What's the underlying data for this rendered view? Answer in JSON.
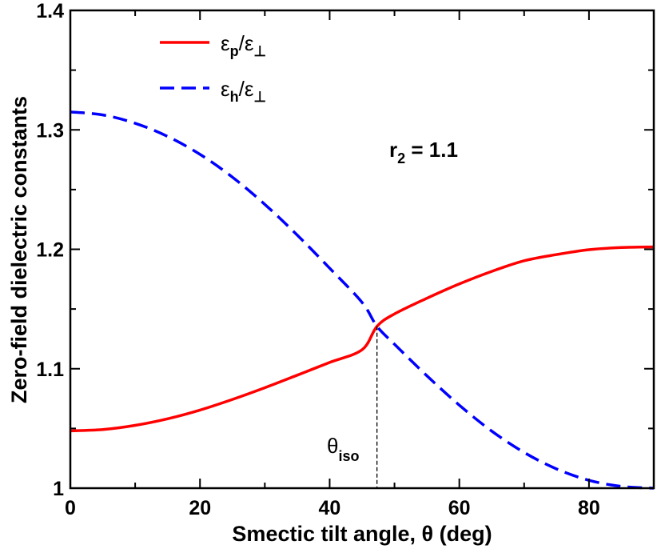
{
  "chart_data": {
    "type": "line",
    "title": "",
    "xlabel": "Smectic tilt angle, θ  (deg)",
    "ylabel": "Zero-field dielectric constants",
    "xlim": [
      0,
      90
    ],
    "ylim": [
      1.0,
      1.4
    ],
    "xticks": [
      "0",
      "20",
      "40",
      "60",
      "80"
    ],
    "yticks": [
      "1",
      "1.1",
      "1.2",
      "1.3",
      "1.4"
    ],
    "grid": false,
    "legend_position": "top-left",
    "series": [
      {
        "name": "εp/ε⊥",
        "base": "ε",
        "subscript": "p",
        "suffix": "/ε",
        "suffix_sub": "⊥",
        "color": "#ff0000",
        "style": "solid",
        "x": [
          0,
          5,
          10,
          15,
          20,
          25,
          30,
          35,
          40,
          45,
          47.3,
          50,
          55,
          60,
          65,
          70,
          75,
          80,
          85,
          90
        ],
        "y": [
          1.048,
          1.0491,
          1.0526,
          1.0581,
          1.0654,
          1.0743,
          1.0841,
          1.0946,
          1.1053,
          1.1159,
          1.1355,
          1.1459,
          1.159,
          1.171,
          1.1815,
          1.1904,
          1.1956,
          1.1997,
          1.2015,
          1.202
        ]
      },
      {
        "name": "εh/ε⊥",
        "base": "ε",
        "subscript": "h",
        "suffix": "/ε",
        "suffix_sub": "⊥",
        "color": "#0000ff",
        "style": "dashed",
        "x": [
          0,
          5,
          10,
          15,
          20,
          25,
          30,
          35,
          40,
          45,
          47.3,
          50,
          55,
          60,
          65,
          70,
          75,
          80,
          85,
          90
        ],
        "y": [
          1.315,
          1.3125,
          1.3055,
          1.2945,
          1.2795,
          1.2604,
          1.2376,
          1.2119,
          1.1842,
          1.1555,
          1.1355,
          1.1205,
          1.0941,
          1.0695,
          1.0478,
          1.0299,
          1.0161,
          1.0066,
          1.0015,
          1.0
        ]
      }
    ],
    "annotations": {
      "r2": {
        "base": "r",
        "sub": "2",
        "rest": " = 1.1"
      },
      "theta_iso": {
        "base": "θ",
        "sub": "iso",
        "x": 47.3
      }
    }
  }
}
